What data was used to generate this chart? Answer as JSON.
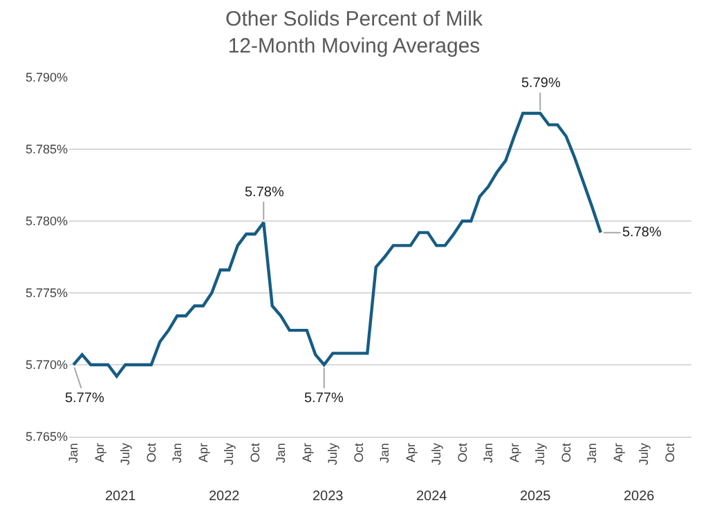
{
  "chart_data": {
    "type": "line",
    "title": "Other Solids Percent of Milk\n12-Month Moving Averages",
    "categories": [
      "Jan",
      null,
      null,
      "Apr",
      null,
      null,
      "July",
      null,
      null,
      "Oct",
      null,
      null,
      "Jan",
      null,
      null,
      "Apr",
      null,
      null,
      "July",
      null,
      null,
      "Oct",
      null,
      null,
      "Jan",
      null,
      null,
      "Apr",
      null,
      null,
      "July",
      null,
      null,
      "Oct",
      null,
      null,
      "Jan",
      null,
      null,
      "Apr",
      null,
      null,
      "July",
      null,
      null,
      "Oct",
      null,
      null,
      "Jan",
      null,
      null,
      "Apr",
      null,
      null,
      "July",
      null,
      null,
      "Oct",
      null,
      null,
      "Jan",
      null,
      null,
      "Apr",
      null,
      null,
      "July",
      null,
      null,
      "Oct",
      null,
      null
    ],
    "series": [
      {
        "color": "#175c83",
        "values": [
          5.77,
          5.7707,
          5.77,
          5.77,
          5.77,
          5.7692,
          5.77,
          5.77,
          5.77,
          5.77,
          5.7716,
          5.7724,
          5.7734,
          5.7734,
          5.7741,
          5.7741,
          5.775,
          5.7766,
          5.7766,
          5.7783,
          5.7791,
          5.7791,
          5.7799,
          5.7741,
          5.7734,
          5.7724,
          5.7724,
          5.7724,
          5.7707,
          5.77,
          5.7708,
          5.7708,
          5.7708,
          5.7708,
          5.7708,
          5.7768,
          5.7775,
          5.7783,
          5.7783,
          5.7783,
          5.7792,
          5.7792,
          5.7783,
          5.7783,
          5.7791,
          5.78,
          5.78,
          5.7817,
          5.7824,
          5.7834,
          5.7842,
          5.7859,
          5.7875,
          5.7875,
          5.7875,
          5.7867,
          5.7867,
          5.7859,
          5.7844,
          5.7827,
          5.781,
          5.7792,
          null,
          null,
          null,
          null,
          null,
          null,
          null,
          null,
          null,
          null
        ],
        "value_labels": [
          "5.77%",
          null,
          null,
          null,
          null,
          null,
          null,
          null,
          null,
          null,
          null,
          null,
          null,
          null,
          null,
          null,
          null,
          null,
          null,
          null,
          null,
          null,
          "5.78%",
          null,
          null,
          null,
          null,
          null,
          null,
          "5.77%",
          null,
          null,
          null,
          null,
          null,
          null,
          null,
          null,
          null,
          null,
          null,
          null,
          null,
          null,
          null,
          null,
          null,
          null,
          null,
          null,
          null,
          null,
          null,
          null,
          "5.79%",
          null,
          null,
          null,
          null,
          null,
          null,
          "5.78%",
          null,
          null,
          null,
          null,
          null,
          null,
          null,
          null,
          null,
          null
        ]
      }
    ],
    "annotations": [
      "2021",
      "2022",
      "2023",
      "2024",
      "2025",
      "2026"
    ],
    "ylim": [
      5.765,
      5.79
    ],
    "yticks": [
      {
        "value": 5.765,
        "label": "5.765%"
      },
      {
        "value": 5.77,
        "label": "5.770%"
      },
      {
        "value": 5.775,
        "label": "5.775%"
      },
      {
        "value": 5.78,
        "label": "5.780%"
      },
      {
        "value": 5.785,
        "label": "5.785%"
      },
      {
        "value": 5.79,
        "label": "5.790%"
      }
    ],
    "grid": "y",
    "marker": "none",
    "line_style": "solid"
  }
}
